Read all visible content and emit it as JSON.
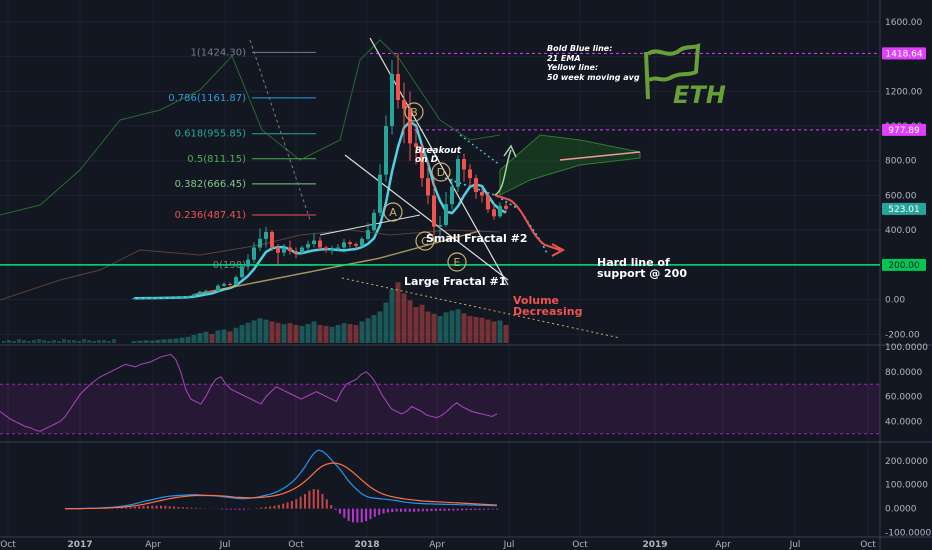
{
  "chart_data": {
    "type": "candlestick",
    "symbol_logo_text": "ETH",
    "legend_note": {
      "lines": [
        "Bold Blue line:",
        "21 EMA",
        "Yellow line:",
        "50 week moving avg"
      ]
    },
    "x_axis": {
      "ticks": [
        "Oct",
        "2017",
        "Apr",
        "Jul",
        "Oct",
        "2018",
        "Apr",
        "Jul",
        "Oct",
        "2019",
        "Apr",
        "Jul",
        "Oct"
      ]
    },
    "price_axis": {
      "ticks": [
        "1600.00",
        "1400.00",
        "1200.00",
        "1000.00",
        "800.00",
        "600.00",
        "400.00",
        "200.00",
        "0.00",
        "-200.00"
      ],
      "ylim": [
        -250,
        1680
      ]
    },
    "rsi_axis": {
      "ticks": [
        "100.0000",
        "80.0000",
        "60.0000",
        "40.0000"
      ],
      "ylim": [
        25,
        100
      ],
      "band": [
        30,
        70
      ],
      "values": [
        48,
        45,
        42,
        40,
        38,
        36,
        35,
        33,
        32,
        34,
        36,
        38,
        40,
        44,
        50,
        56,
        62,
        66,
        70,
        73,
        76,
        78,
        80,
        82,
        84,
        86,
        85,
        84,
        86,
        87,
        88,
        90,
        92,
        93,
        94,
        90,
        80,
        66,
        58,
        56,
        54,
        60,
        68,
        74,
        76,
        70,
        66,
        64,
        62,
        60,
        58,
        56,
        54,
        60,
        64,
        68,
        66,
        64,
        62,
        60,
        58,
        60,
        62,
        64,
        62,
        60,
        58,
        56,
        64,
        70,
        72,
        74,
        78,
        80,
        76,
        70,
        62,
        56,
        50,
        48,
        46,
        48,
        52,
        50,
        48,
        45,
        44,
        43,
        45,
        48,
        52,
        55,
        52,
        50,
        48,
        47,
        46,
        45,
        44,
        46
      ]
    },
    "macd_axis": {
      "ticks": [
        "200.0000",
        "100.0000",
        "0.0000",
        "-100.0000"
      ],
      "ylim": [
        -110,
        270
      ],
      "macd": [
        0,
        0,
        0,
        0,
        1,
        1,
        2,
        2,
        3,
        4,
        5,
        6,
        8,
        10,
        13,
        16,
        20,
        25,
        30,
        34,
        38,
        42,
        46,
        50,
        52,
        54,
        55,
        56,
        57,
        58,
        58,
        57,
        56,
        55,
        54,
        53,
        50,
        48,
        46,
        44,
        42,
        42,
        43,
        45,
        48,
        52,
        56,
        60,
        66,
        74,
        84,
        96,
        110,
        128,
        150,
        175,
        205,
        230,
        245,
        240,
        225,
        205,
        185,
        165,
        140,
        115,
        95,
        78,
        62,
        52,
        46,
        44,
        42,
        40,
        38,
        36,
        34,
        30,
        27,
        25,
        23,
        22,
        21,
        20,
        20,
        19,
        19,
        18,
        18,
        17,
        17,
        16,
        16,
        15,
        15,
        14,
        14,
        13,
        13,
        12
      ],
      "signal": [
        0,
        0,
        0,
        0,
        0,
        1,
        1,
        1,
        2,
        2,
        3,
        4,
        5,
        6,
        8,
        10,
        12,
        15,
        18,
        22,
        26,
        30,
        34,
        38,
        42,
        45,
        48,
        50,
        52,
        54,
        55,
        55,
        55,
        55,
        55,
        54,
        53,
        52,
        50,
        48,
        47,
        46,
        45,
        45,
        46,
        47,
        49,
        51,
        54,
        58,
        63,
        70,
        78,
        88,
        100,
        114,
        130,
        148,
        165,
        178,
        186,
        190,
        190,
        186,
        178,
        166,
        152,
        136,
        120,
        104,
        90,
        78,
        68,
        60,
        54,
        50,
        46,
        43,
        40,
        38,
        36,
        34,
        32,
        31,
        30,
        29,
        28,
        27,
        26,
        25,
        24,
        23,
        22,
        21,
        20,
        19,
        18,
        17,
        16,
        15
      ]
    },
    "candles": [
      [
        8,
        8,
        9,
        8
      ],
      [
        8,
        9,
        10,
        8
      ],
      [
        9,
        10,
        11,
        9
      ],
      [
        10,
        10,
        12,
        9
      ],
      [
        10,
        11,
        12,
        10
      ],
      [
        11,
        12,
        13,
        10
      ],
      [
        12,
        13,
        14,
        11
      ],
      [
        13,
        14,
        16,
        12
      ],
      [
        14,
        16,
        18,
        13
      ],
      [
        16,
        18,
        22,
        15
      ],
      [
        18,
        30,
        35,
        17
      ],
      [
        30,
        45,
        50,
        28
      ],
      [
        45,
        50,
        58,
        40
      ],
      [
        50,
        48,
        55,
        42
      ],
      [
        48,
        80,
        90,
        46
      ],
      [
        80,
        90,
        100,
        75
      ],
      [
        90,
        85,
        98,
        78
      ],
      [
        85,
        130,
        140,
        82
      ],
      [
        130,
        190,
        200,
        120
      ],
      [
        190,
        230,
        260,
        170
      ],
      [
        230,
        300,
        330,
        210
      ],
      [
        300,
        350,
        410,
        280
      ],
      [
        350,
        390,
        420,
        300
      ],
      [
        390,
        300,
        400,
        280
      ],
      [
        300,
        270,
        320,
        200
      ],
      [
        270,
        300,
        320,
        250
      ],
      [
        300,
        280,
        340,
        260
      ],
      [
        280,
        270,
        300,
        240
      ],
      [
        270,
        300,
        310,
        260
      ],
      [
        300,
        320,
        340,
        280
      ],
      [
        320,
        340,
        380,
        300
      ],
      [
        340,
        300,
        360,
        280
      ],
      [
        300,
        290,
        310,
        270
      ],
      [
        290,
        290,
        310,
        260
      ],
      [
        290,
        300,
        320,
        280
      ],
      [
        300,
        330,
        350,
        290
      ],
      [
        330,
        320,
        340,
        300
      ],
      [
        320,
        310,
        330,
        290
      ],
      [
        310,
        350,
        360,
        300
      ],
      [
        350,
        400,
        440,
        340
      ],
      [
        400,
        500,
        520,
        390
      ],
      [
        500,
        720,
        780,
        480
      ],
      [
        720,
        1000,
        1060,
        680
      ],
      [
        1000,
        1300,
        1380,
        950
      ],
      [
        1300,
        1150,
        1420,
        1100
      ],
      [
        1150,
        1100,
        1250,
        900
      ],
      [
        1100,
        900,
        1200,
        800
      ],
      [
        900,
        880,
        1000,
        780
      ],
      [
        880,
        700,
        900,
        650
      ],
      [
        700,
        600,
        800,
        550
      ],
      [
        600,
        420,
        700,
        370
      ],
      [
        420,
        430,
        480,
        360
      ],
      [
        430,
        550,
        620,
        420
      ],
      [
        550,
        650,
        700,
        520
      ],
      [
        650,
        810,
        830,
        620
      ],
      [
        810,
        750,
        840,
        680
      ],
      [
        750,
        700,
        780,
        650
      ],
      [
        700,
        620,
        720,
        580
      ],
      [
        620,
        600,
        640,
        560
      ],
      [
        600,
        520,
        620,
        500
      ],
      [
        520,
        480,
        550,
        460
      ],
      [
        480,
        540,
        560,
        470
      ],
      [
        540,
        523,
        560,
        500
      ]
    ],
    "volume": [
      4,
      5,
      6,
      5,
      7,
      8,
      9,
      10,
      12,
      14,
      18,
      22,
      25,
      20,
      28,
      30,
      26,
      34,
      40,
      45,
      50,
      55,
      52,
      48,
      45,
      42,
      44,
      40,
      38,
      42,
      48,
      40,
      38,
      36,
      40,
      44,
      42,
      40,
      48,
      55,
      62,
      70,
      90,
      120,
      135,
      110,
      95,
      80,
      85,
      70,
      65,
      60,
      68,
      72,
      75,
      66,
      60,
      58,
      56,
      52,
      48,
      50,
      40
    ],
    "fib_levels": [
      {
        "label": "1(1424.30)",
        "value": 1424.3,
        "color": "#787b86"
      },
      {
        "label": "0.786(1161.87)",
        "value": 1161.87,
        "color": "#2d9cdb"
      },
      {
        "label": "0.618(955.85)",
        "value": 955.85,
        "color": "#26a69a"
      },
      {
        "label": "0.5(811.15)",
        "value": 811.15,
        "color": "#4caf50"
      },
      {
        "label": "0.382(666.45)",
        "value": 666.45,
        "color": "#81c784"
      },
      {
        "label": "0.236(487.41)",
        "value": 487.41,
        "color": "#ef5350"
      },
      {
        "label": "0(198)",
        "value": 198,
        "color": "#787b86"
      }
    ],
    "price_badges": [
      {
        "label": "1418.64",
        "value": 1418.64,
        "color": "#e040fb",
        "text_color": "#ffffff"
      },
      {
        "label": "977.89",
        "value": 977.89,
        "color": "#e040fb",
        "text_color": "#ffffff"
      },
      {
        "label": "523.01",
        "value": 523.01,
        "color": "#26a69a",
        "text_color": "#ffffff"
      },
      {
        "label": "200.00",
        "value": 200,
        "color": "#00c853",
        "text_color": "#131722"
      }
    ],
    "support_level": {
      "value": 200,
      "color": "#00e676"
    },
    "annotations": {
      "breakout": "Breakout",
      "breakout2": "on D",
      "small_fractal": "Small Fractal #2",
      "large_fractal": "Large Fractal #1",
      "volume1": "Volume",
      "volume2": "Decreasing",
      "hard_line1": "Hard line of",
      "hard_line2": "support @ 200"
    },
    "wave_points": [
      "A",
      "B",
      "C",
      "D",
      "E"
    ]
  }
}
